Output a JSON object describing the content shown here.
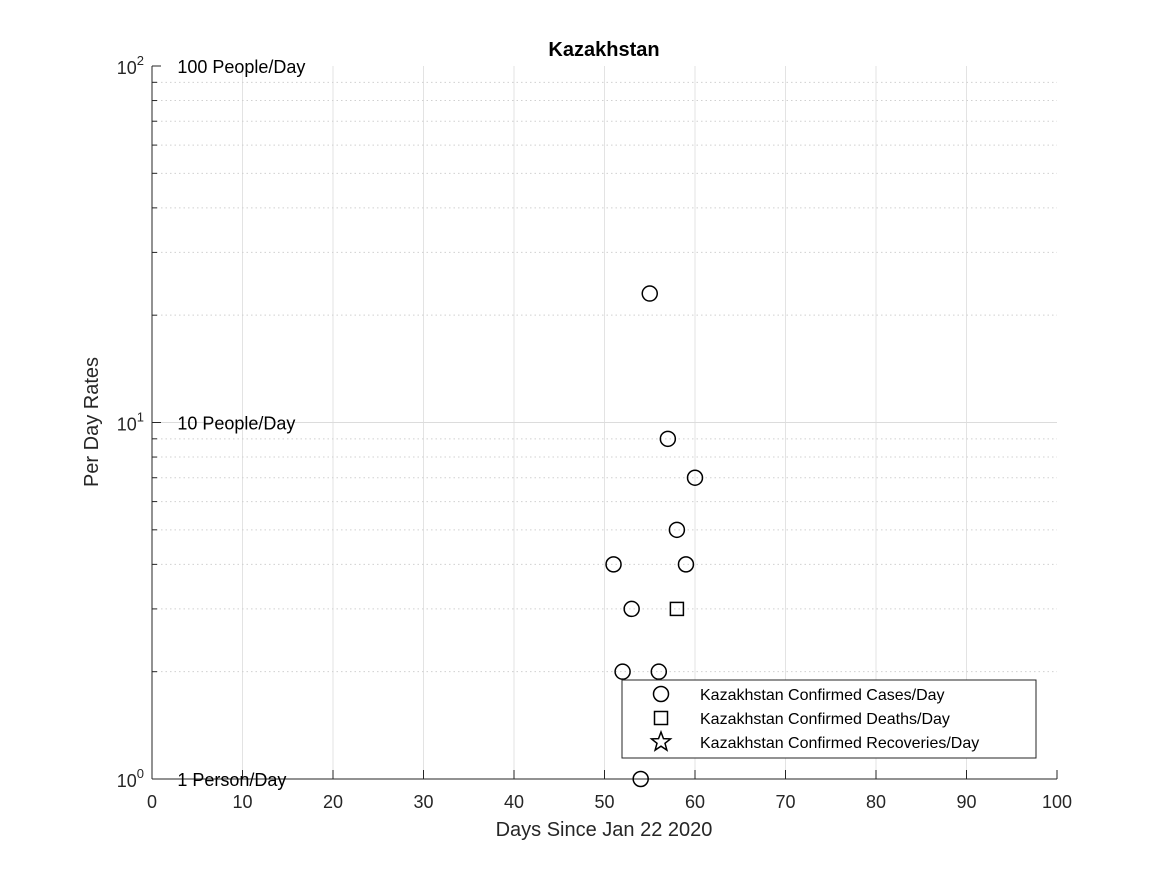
{
  "chart_data": {
    "type": "scatter",
    "title": "Kazakhstan",
    "xlabel": "Days Since Jan 22 2020",
    "ylabel": "Per Day Rates",
    "xlim": [
      0,
      100
    ],
    "ylim": [
      1,
      100
    ],
    "yscale": "log",
    "grid": true,
    "x_ticks": [
      "0",
      "10",
      "20",
      "30",
      "40",
      "50",
      "60",
      "70",
      "80",
      "90",
      "100"
    ],
    "y_ticks": [
      {
        "base": "10",
        "exp": "0"
      },
      {
        "base": "10",
        "exp": "1"
      },
      {
        "base": "10",
        "exp": "2"
      }
    ],
    "annotations": [
      {
        "text": "100 People/Day",
        "y": 100
      },
      {
        "text": "10 People/Day",
        "y": 10
      },
      {
        "text": "1 Person/Day",
        "y": 1
      }
    ],
    "legend_position": "bottom-right",
    "series": [
      {
        "name": "Kazakhstan Confirmed Cases/Day",
        "marker": "circle",
        "points": [
          {
            "x": 51,
            "y": 4
          },
          {
            "x": 52,
            "y": 2
          },
          {
            "x": 53,
            "y": 3
          },
          {
            "x": 54,
            "y": 1
          },
          {
            "x": 55,
            "y": 23
          },
          {
            "x": 56,
            "y": 2
          },
          {
            "x": 57,
            "y": 9
          },
          {
            "x": 58,
            "y": 5
          },
          {
            "x": 59,
            "y": 4
          },
          {
            "x": 60,
            "y": 7
          }
        ]
      },
      {
        "name": "Kazakhstan Confirmed Deaths/Day",
        "marker": "square",
        "points": [
          {
            "x": 58,
            "y": 3
          }
        ]
      },
      {
        "name": "Kazakhstan Confirmed Recoveries/Day",
        "marker": "star",
        "points": []
      }
    ]
  }
}
